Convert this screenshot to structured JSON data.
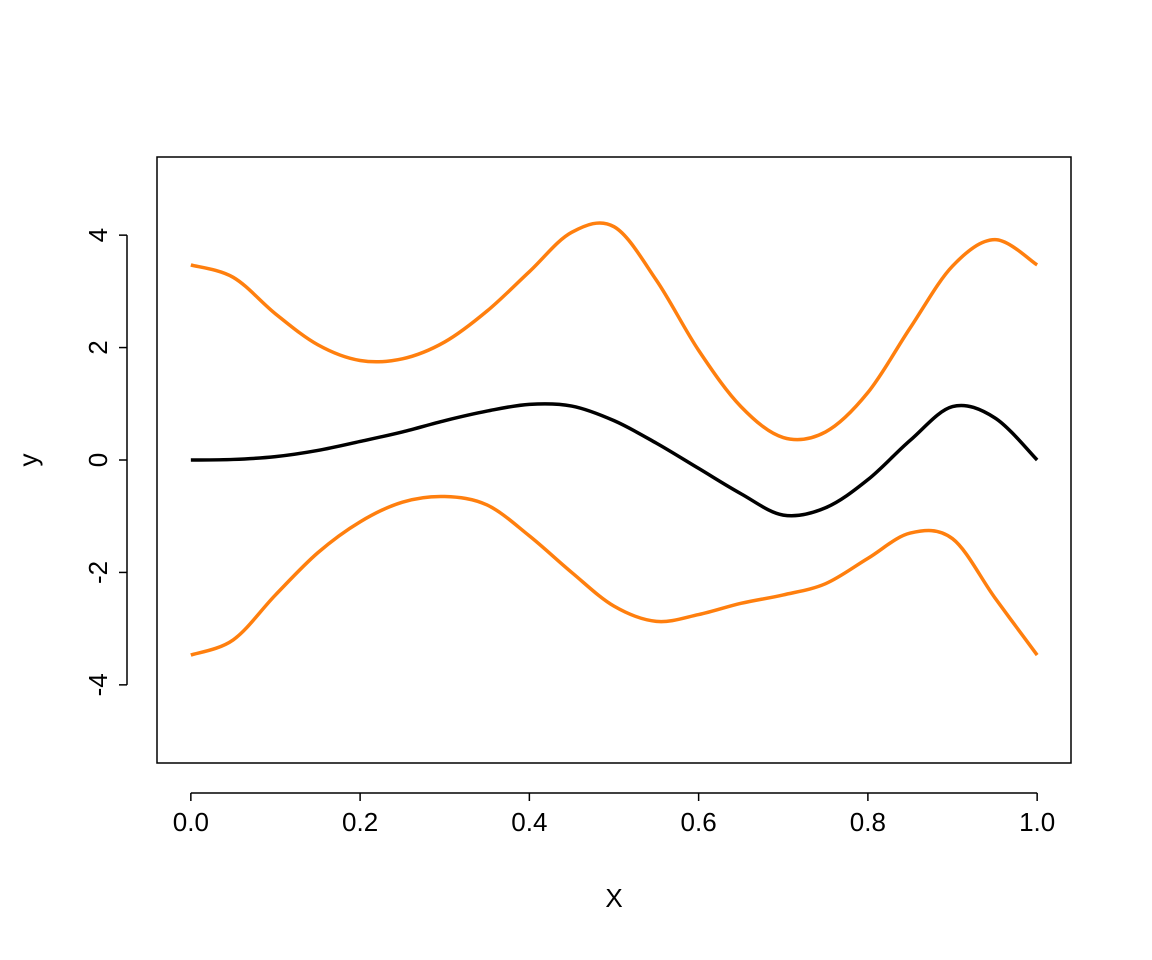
{
  "chart_data": {
    "type": "line",
    "xlabel": "X",
    "ylabel": "y",
    "x": [
      0,
      0.05,
      0.1,
      0.15,
      0.2,
      0.25,
      0.3,
      0.35,
      0.4,
      0.45,
      0.5,
      0.55,
      0.6,
      0.65,
      0.7,
      0.75,
      0.8,
      0.85,
      0.9,
      0.95,
      1
    ],
    "series": [
      {
        "color": "#ff7f0e",
        "values": [
          3.47,
          3.25,
          2.6,
          2.05,
          1.77,
          1.8,
          2.1,
          2.65,
          3.35,
          4.05,
          4.15,
          3.2,
          1.95,
          0.95,
          0.4,
          0.5,
          1.2,
          2.35,
          3.45,
          3.92,
          3.47
        ]
      },
      {
        "color": "#ff7f0e",
        "values": [
          -3.47,
          -3.2,
          -2.4,
          -1.65,
          -1.1,
          -0.75,
          -0.65,
          -0.8,
          -1.35,
          -2.0,
          -2.6,
          -2.87,
          -2.75,
          -2.55,
          -2.4,
          -2.2,
          -1.75,
          -1.3,
          -1.4,
          -2.45,
          -3.47
        ]
      },
      {
        "color": "#000000",
        "values": [
          0,
          0.01,
          0.06,
          0.17,
          0.33,
          0.5,
          0.7,
          0.87,
          0.99,
          0.96,
          0.7,
          0.3,
          -0.15,
          -0.6,
          -0.98,
          -0.85,
          -0.35,
          0.35,
          0.95,
          0.75,
          0
        ]
      }
    ],
    "xlim": [
      -0.04,
      1.04
    ],
    "ylim": [
      -5.39,
      5.39
    ],
    "xticks": [
      {
        "value": 0,
        "label": "0.0"
      },
      0.2,
      0.4,
      0.6,
      0.8,
      {
        "value": 1,
        "label": "1.0"
      }
    ],
    "yticks": [
      -4,
      -2,
      0,
      2,
      4
    ],
    "grid": false
  }
}
